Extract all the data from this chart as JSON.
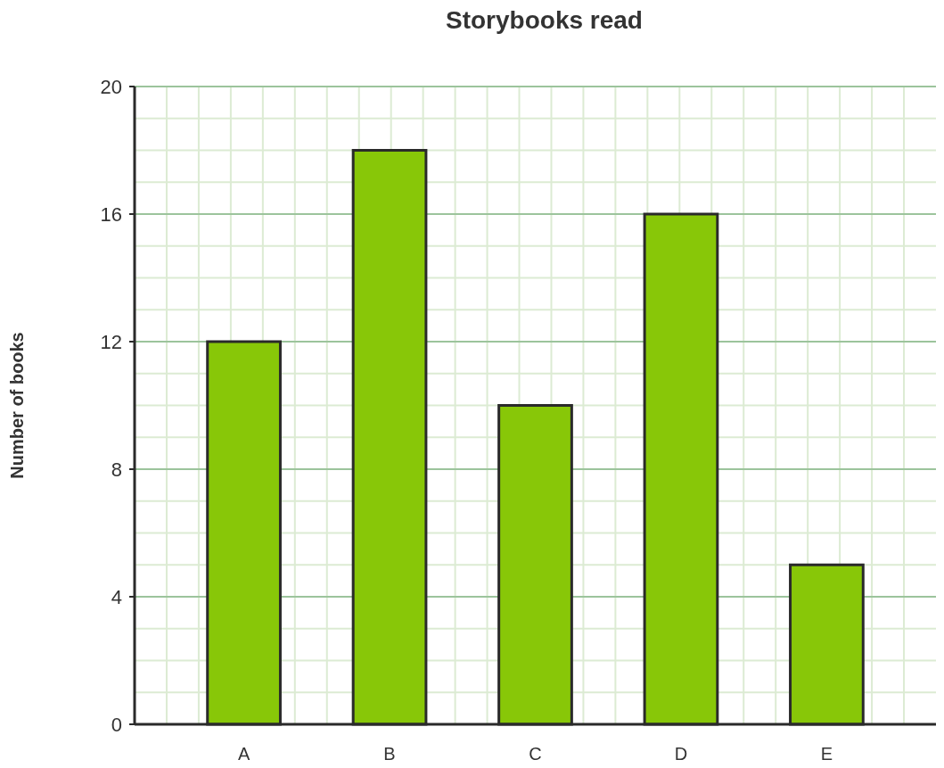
{
  "chart_data": {
    "type": "bar",
    "title": "Storybooks read",
    "ylabel": "Number of books",
    "categories": [
      "A",
      "B",
      "C",
      "D",
      "E"
    ],
    "values": [
      12,
      18,
      10,
      16,
      5
    ],
    "color": "#88c708",
    "ylim": [
      0,
      20
    ],
    "yticks": [
      0,
      4,
      8,
      12,
      16,
      20
    ],
    "grid": true
  }
}
